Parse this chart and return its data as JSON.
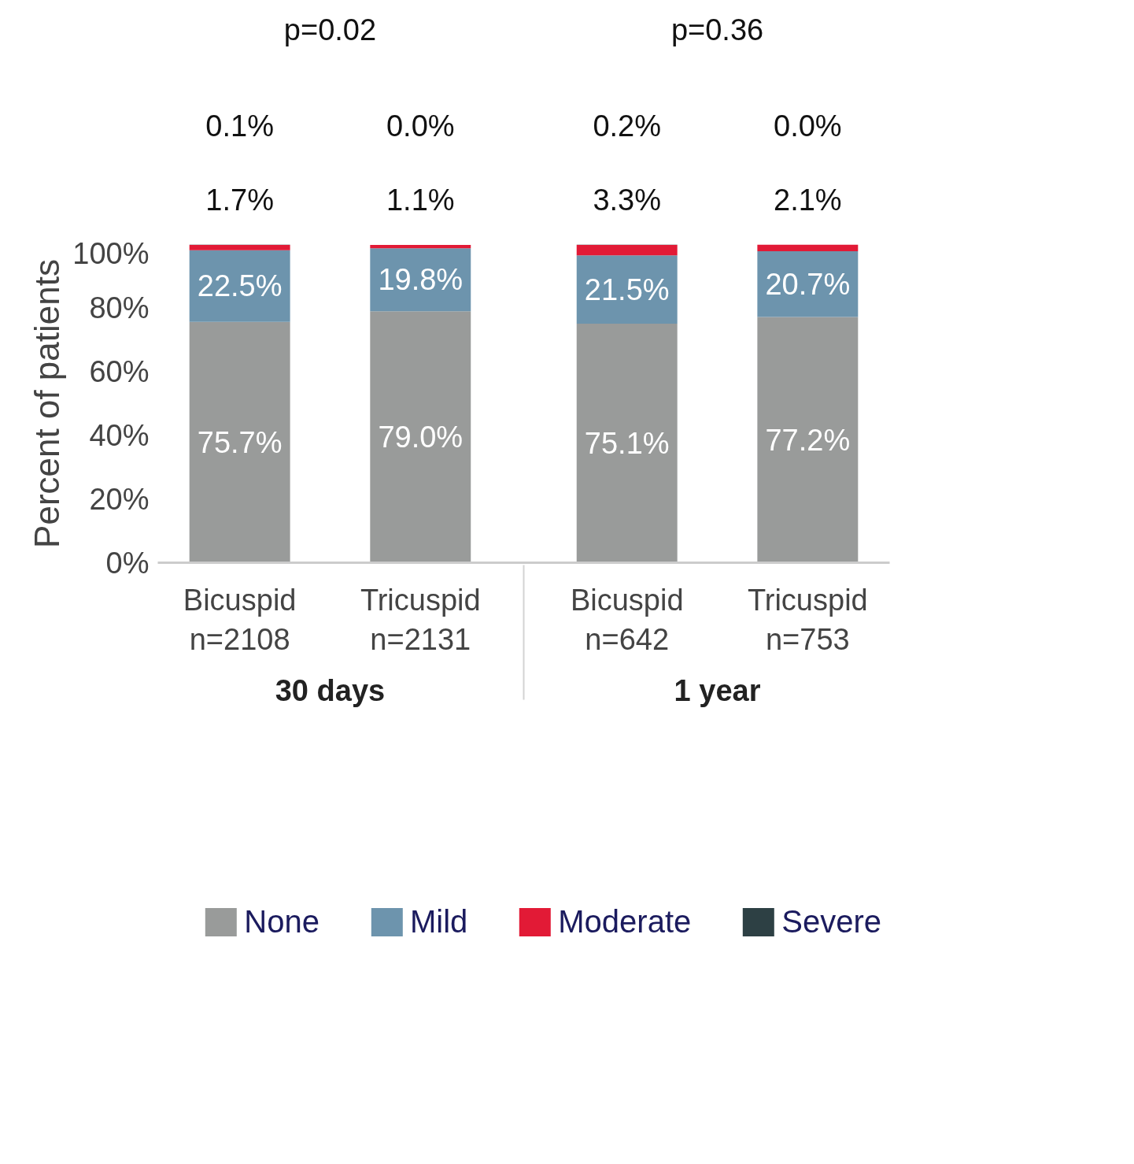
{
  "chart_data": {
    "type": "bar",
    "stacked": true,
    "ylabel": "Percent of patients",
    "categories": [
      "Bicuspid\nn=2108",
      "Tricuspid\nn=2131",
      "Bicuspid\nn=642",
      "Tricuspid\nn=753"
    ],
    "series": [
      {
        "name": "None",
        "color": "#999b9a",
        "values": [
          75.7,
          79.0,
          75.1,
          77.2
        ],
        "value_labels": [
          "75.7%",
          "79.0%",
          "75.1%",
          "77.2%"
        ]
      },
      {
        "name": "Mild",
        "color": "#6d94ad",
        "values": [
          22.5,
          19.8,
          21.5,
          20.7
        ],
        "value_labels": [
          "22.5%",
          "19.8%",
          "21.5%",
          "20.7%"
        ]
      },
      {
        "name": "Moderate",
        "color": "#e21a36",
        "values": [
          1.7,
          1.1,
          3.3,
          2.1
        ],
        "value_labels": [
          "1.7%",
          "1.1%",
          "3.3%",
          "2.1%"
        ]
      },
      {
        "name": "Severe",
        "color": "#2d4044",
        "values": [
          0.1,
          0.0,
          0.2,
          0.0
        ],
        "value_labels": [
          "0.1%",
          "0.0%",
          "0.2%",
          "0.0%"
        ]
      }
    ],
    "ylim": [
      0,
      100
    ],
    "yticks": [
      {
        "value": 0,
        "label": "0%"
      },
      {
        "value": 20,
        "label": "20%"
      },
      {
        "value": 40,
        "label": "40%"
      },
      {
        "value": 60,
        "label": "60%"
      },
      {
        "value": 80,
        "label": "80%"
      },
      {
        "value": 100,
        "label": "100%"
      }
    ],
    "grid": false,
    "legend": "bottom",
    "annotations": [
      "p=0.02",
      "p=0.36",
      "30 days",
      "1 year"
    ]
  }
}
